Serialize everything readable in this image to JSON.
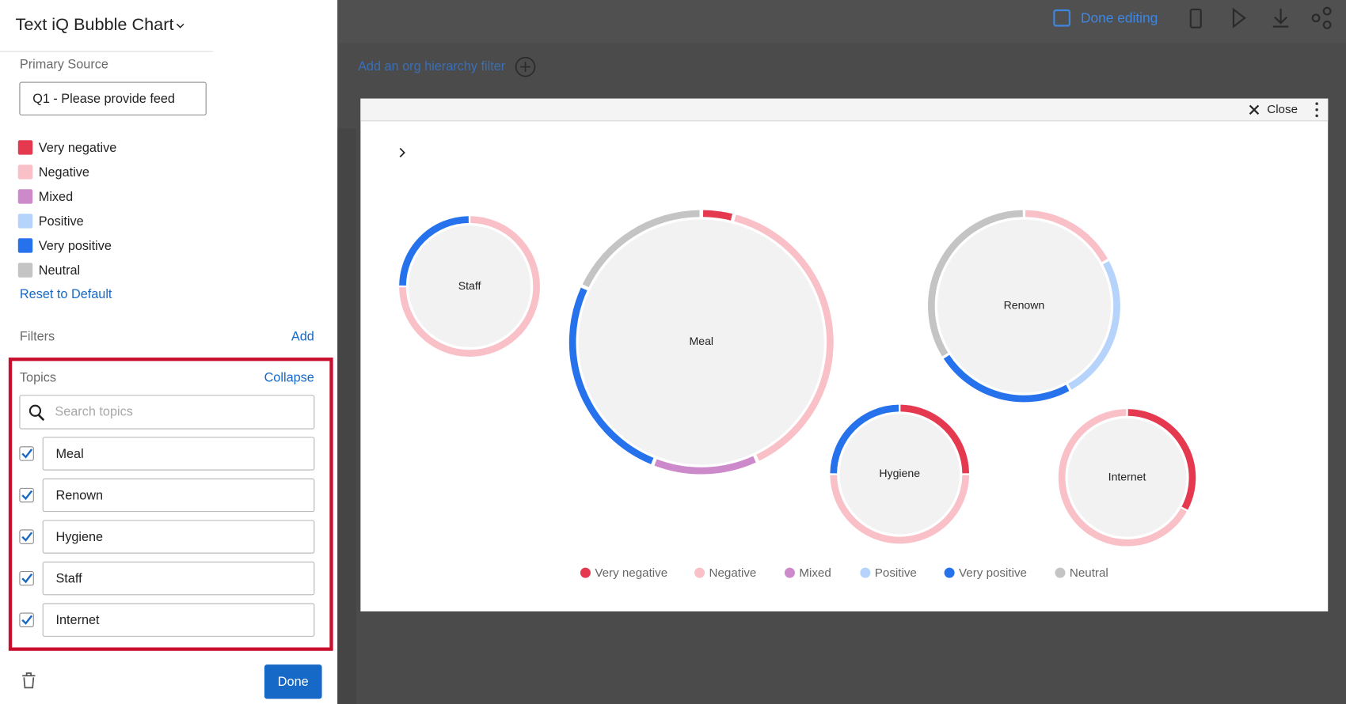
{
  "sidebar": {
    "title": "Text iQ Bubble Chart",
    "primary_source_label": "Primary Source",
    "primary_source_value": "Q1 - Please provide feed",
    "reset": "Reset to Default",
    "filters_label": "Filters",
    "filters_add": "Add",
    "topics_label": "Topics",
    "collapse": "Collapse",
    "search_placeholder": "Search topics",
    "topics": [
      "Meal",
      "Renown",
      "Hygiene",
      "Staff",
      "Internet"
    ],
    "done": "Done"
  },
  "toolbar": {
    "done_editing": "Done editing",
    "org_filter": "Add an org hierarchy filter"
  },
  "modal": {
    "close": "Close"
  },
  "chart_data": {
    "type": "bubble-donut",
    "categories": [
      "Staff",
      "Meal",
      "Renown",
      "Hygiene",
      "Internet"
    ],
    "sizes": [
      82,
      154,
      112,
      81,
      80
    ],
    "series": [
      {
        "name": "Very negative",
        "color": "#e5394f",
        "values": [
          0,
          4,
          0,
          25,
          33
        ]
      },
      {
        "name": "Negative",
        "color": "#f9c0c8",
        "values": [
          75,
          39,
          17,
          50,
          67
        ]
      },
      {
        "name": "Mixed",
        "color": "#cc8acb",
        "values": [
          0,
          13,
          0,
          0,
          0
        ]
      },
      {
        "name": "Positive",
        "color": "#b5d3fb",
        "values": [
          0,
          0,
          25,
          0,
          0
        ]
      },
      {
        "name": "Very positive",
        "color": "#2672ec",
        "values": [
          25,
          26,
          24,
          25,
          0
        ]
      },
      {
        "name": "Neutral",
        "color": "#c4c4c4",
        "values": [
          0,
          18,
          34,
          0,
          0
        ]
      }
    ]
  }
}
